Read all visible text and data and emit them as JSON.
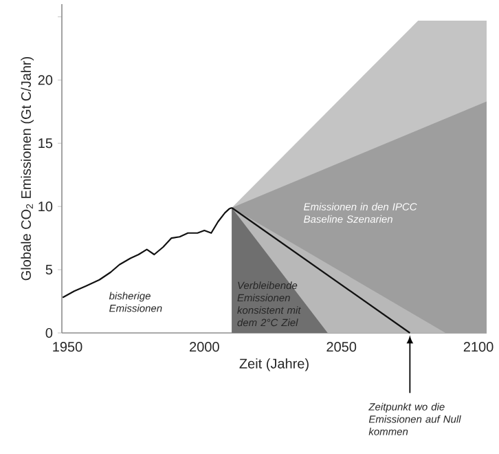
{
  "chart_data": {
    "type": "line",
    "xlabel": "Zeit (Jahre)",
    "ylabel": "Globale CO$_{2}$ Emissionen (Gt C/Jahr)",
    "xlim": [
      1948,
      2103
    ],
    "ylim": [
      0,
      26
    ],
    "xticks": [
      1950,
      2000,
      2050,
      2100
    ],
    "yticks": [
      0,
      5,
      10,
      15,
      20,
      {
        "value": 25,
        "label": null
      }
    ],
    "series": [
      {
        "type": "area",
        "color": "#c4c4c4",
        "x": [
          2010,
          2078,
          2103
        ],
        "values": [
          9.9,
          24.7,
          24.7
        ]
      },
      {
        "type": "area",
        "color": "#9e9e9e",
        "x": [
          2010,
          2103
        ],
        "values": [
          9.9,
          18.3
        ]
      },
      {
        "type": "area",
        "color": "#b8b8b8",
        "x": [
          2010,
          2088
        ],
        "values": [
          9.9,
          0
        ]
      },
      {
        "type": "area",
        "color": "#6f6f6f",
        "x": [
          2010,
          2045
        ],
        "values": [
          9.9,
          0
        ]
      },
      {
        "color": "#111111",
        "x": [
          2010,
          2075
        ],
        "values": [
          9.9,
          0
        ]
      },
      {
        "color": "#111111",
        "x": [
          1948.3,
          1952.5,
          1956.7,
          1961.7,
          1965.8,
          1969,
          1973,
          1976,
          1979,
          1981.7,
          1985,
          1988,
          1991,
          1994,
          1997.5,
          2000,
          2002.5,
          2005,
          2007.5,
          2009,
          2010
        ],
        "values": [
          2.8,
          3.3,
          3.7,
          4.2,
          4.8,
          5.4,
          5.9,
          6.2,
          6.6,
          6.2,
          6.8,
          7.5,
          7.6,
          7.9,
          7.9,
          8.1,
          7.9,
          8.8,
          9.5,
          9.8,
          9.9
        ]
      }
    ],
    "annotations": [
      "Emissionen in den IPCC Baseline Szenarien",
      "Verbleibende Emissionen konsistent mit dem 2°C Ziel",
      "bisherige Emissionen",
      {
        "text": "Zeitpunkt wo die Emissionen auf Null kommen",
        "x": 2075,
        "y": 0
      }
    ]
  }
}
